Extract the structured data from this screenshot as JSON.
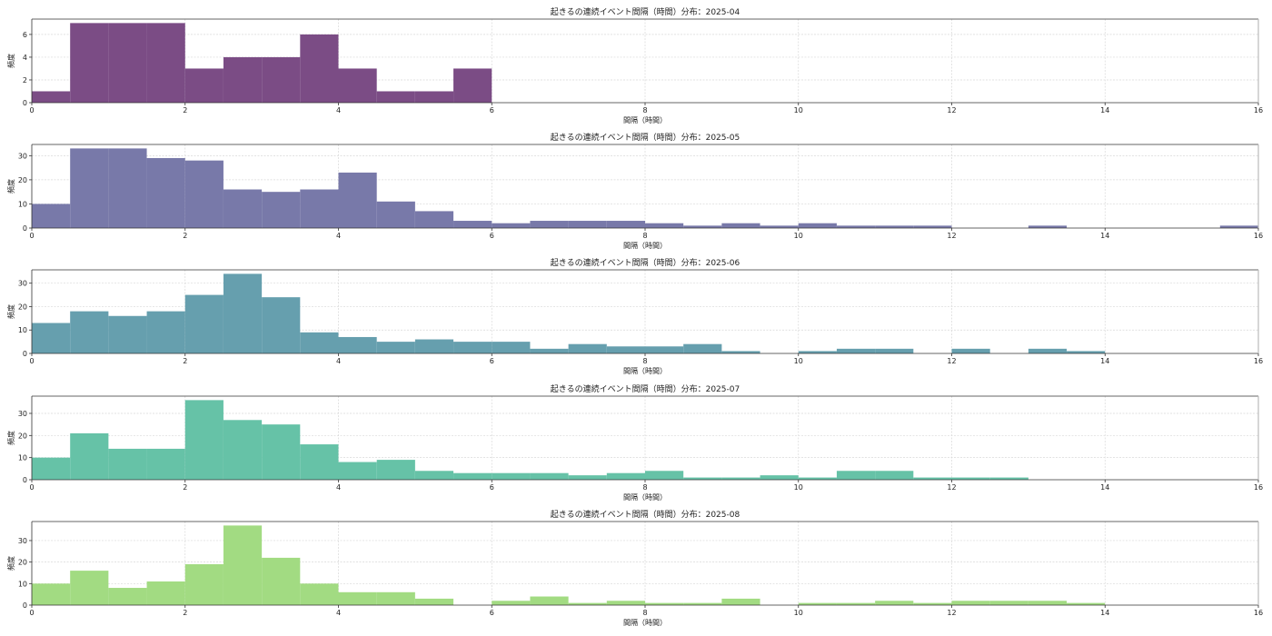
{
  "chart_data": [
    {
      "type": "bar",
      "title": "起きるの連続イベント間隔（時間）分布：2025-04",
      "xlabel": "間隔（時間）",
      "ylabel": "頻度",
      "color": "#7b4c85",
      "bin_width": 0.5,
      "bin_start": 0,
      "values": [
        1,
        7,
        7,
        7,
        3,
        4,
        4,
        6,
        3,
        1,
        1,
        3,
        0,
        0,
        0,
        0,
        0,
        0,
        0,
        0,
        0,
        0,
        0,
        0,
        0,
        0,
        0,
        0,
        0,
        0,
        0,
        0
      ],
      "xlim": [
        0,
        16
      ],
      "ylim": [
        0,
        7.35
      ],
      "xticks": [
        0,
        2,
        4,
        6,
        8,
        10,
        12,
        14,
        16
      ],
      "yticks": [
        0,
        2,
        4,
        6
      ],
      "grid": true
    },
    {
      "type": "bar",
      "title": "起きるの連続イベント間隔（時間）分布：2025-05",
      "xlabel": "間隔（時間）",
      "ylabel": "頻度",
      "color": "#7879a9",
      "bin_width": 0.5,
      "bin_start": 0,
      "values": [
        10,
        33,
        33,
        29,
        28,
        16,
        15,
        16,
        23,
        11,
        7,
        3,
        2,
        3,
        3,
        3,
        2,
        1,
        2,
        1,
        2,
        1,
        1,
        1,
        0,
        0,
        1,
        0,
        0,
        0,
        0,
        1
      ],
      "xlim": [
        0,
        16
      ],
      "ylim": [
        0,
        34.65
      ],
      "xticks": [
        0,
        2,
        4,
        6,
        8,
        10,
        12,
        14,
        16
      ],
      "yticks": [
        0,
        10,
        20,
        30
      ],
      "grid": true
    },
    {
      "type": "bar",
      "title": "起きるの連続イベント間隔（時間）分布：2025-06",
      "xlabel": "間隔（時間）",
      "ylabel": "頻度",
      "color": "#669fae",
      "bin_width": 0.5,
      "bin_start": 0,
      "values": [
        13,
        18,
        16,
        18,
        25,
        34,
        24,
        9,
        7,
        5,
        6,
        5,
        5,
        2,
        4,
        3,
        3,
        4,
        1,
        0,
        1,
        2,
        2,
        0,
        2,
        0,
        2,
        1,
        0,
        0,
        0,
        0
      ],
      "xlim": [
        0,
        16
      ],
      "ylim": [
        0,
        35.7
      ],
      "xticks": [
        0,
        2,
        4,
        6,
        8,
        10,
        12,
        14,
        16
      ],
      "yticks": [
        0,
        10,
        20,
        30
      ],
      "grid": true
    },
    {
      "type": "bar",
      "title": "起きるの連続イベント間隔（時間）分布：2025-07",
      "xlabel": "間隔（時間）",
      "ylabel": "頻度",
      "color": "#66c2a7",
      "bin_width": 0.5,
      "bin_start": 0,
      "values": [
        10,
        21,
        14,
        14,
        36,
        27,
        25,
        16,
        8,
        9,
        4,
        3,
        3,
        3,
        2,
        3,
        4,
        1,
        1,
        2,
        1,
        4,
        4,
        1,
        1,
        1,
        0,
        0,
        0,
        0,
        0,
        0
      ],
      "xlim": [
        0,
        16
      ],
      "ylim": [
        0,
        37.8
      ],
      "xticks": [
        0,
        2,
        4,
        6,
        8,
        10,
        12,
        14,
        16
      ],
      "yticks": [
        0,
        10,
        20,
        30
      ],
      "grid": true
    },
    {
      "type": "bar",
      "title": "起きるの連続イベント間隔（時間）分布：2025-08",
      "xlabel": "間隔（時間）",
      "ylabel": "頻度",
      "color": "#a2db82",
      "bin_width": 0.5,
      "bin_start": 0,
      "values": [
        10,
        16,
        8,
        11,
        19,
        37,
        22,
        10,
        6,
        6,
        3,
        0,
        2,
        4,
        1,
        2,
        1,
        1,
        3,
        0,
        1,
        1,
        2,
        1,
        2,
        2,
        2,
        1,
        0,
        0,
        0,
        0
      ],
      "xlim": [
        0,
        16
      ],
      "ylim": [
        0,
        38.85
      ],
      "xticks": [
        0,
        2,
        4,
        6,
        8,
        10,
        12,
        14,
        16
      ],
      "yticks": [
        0,
        10,
        20,
        30
      ],
      "grid": true
    }
  ]
}
